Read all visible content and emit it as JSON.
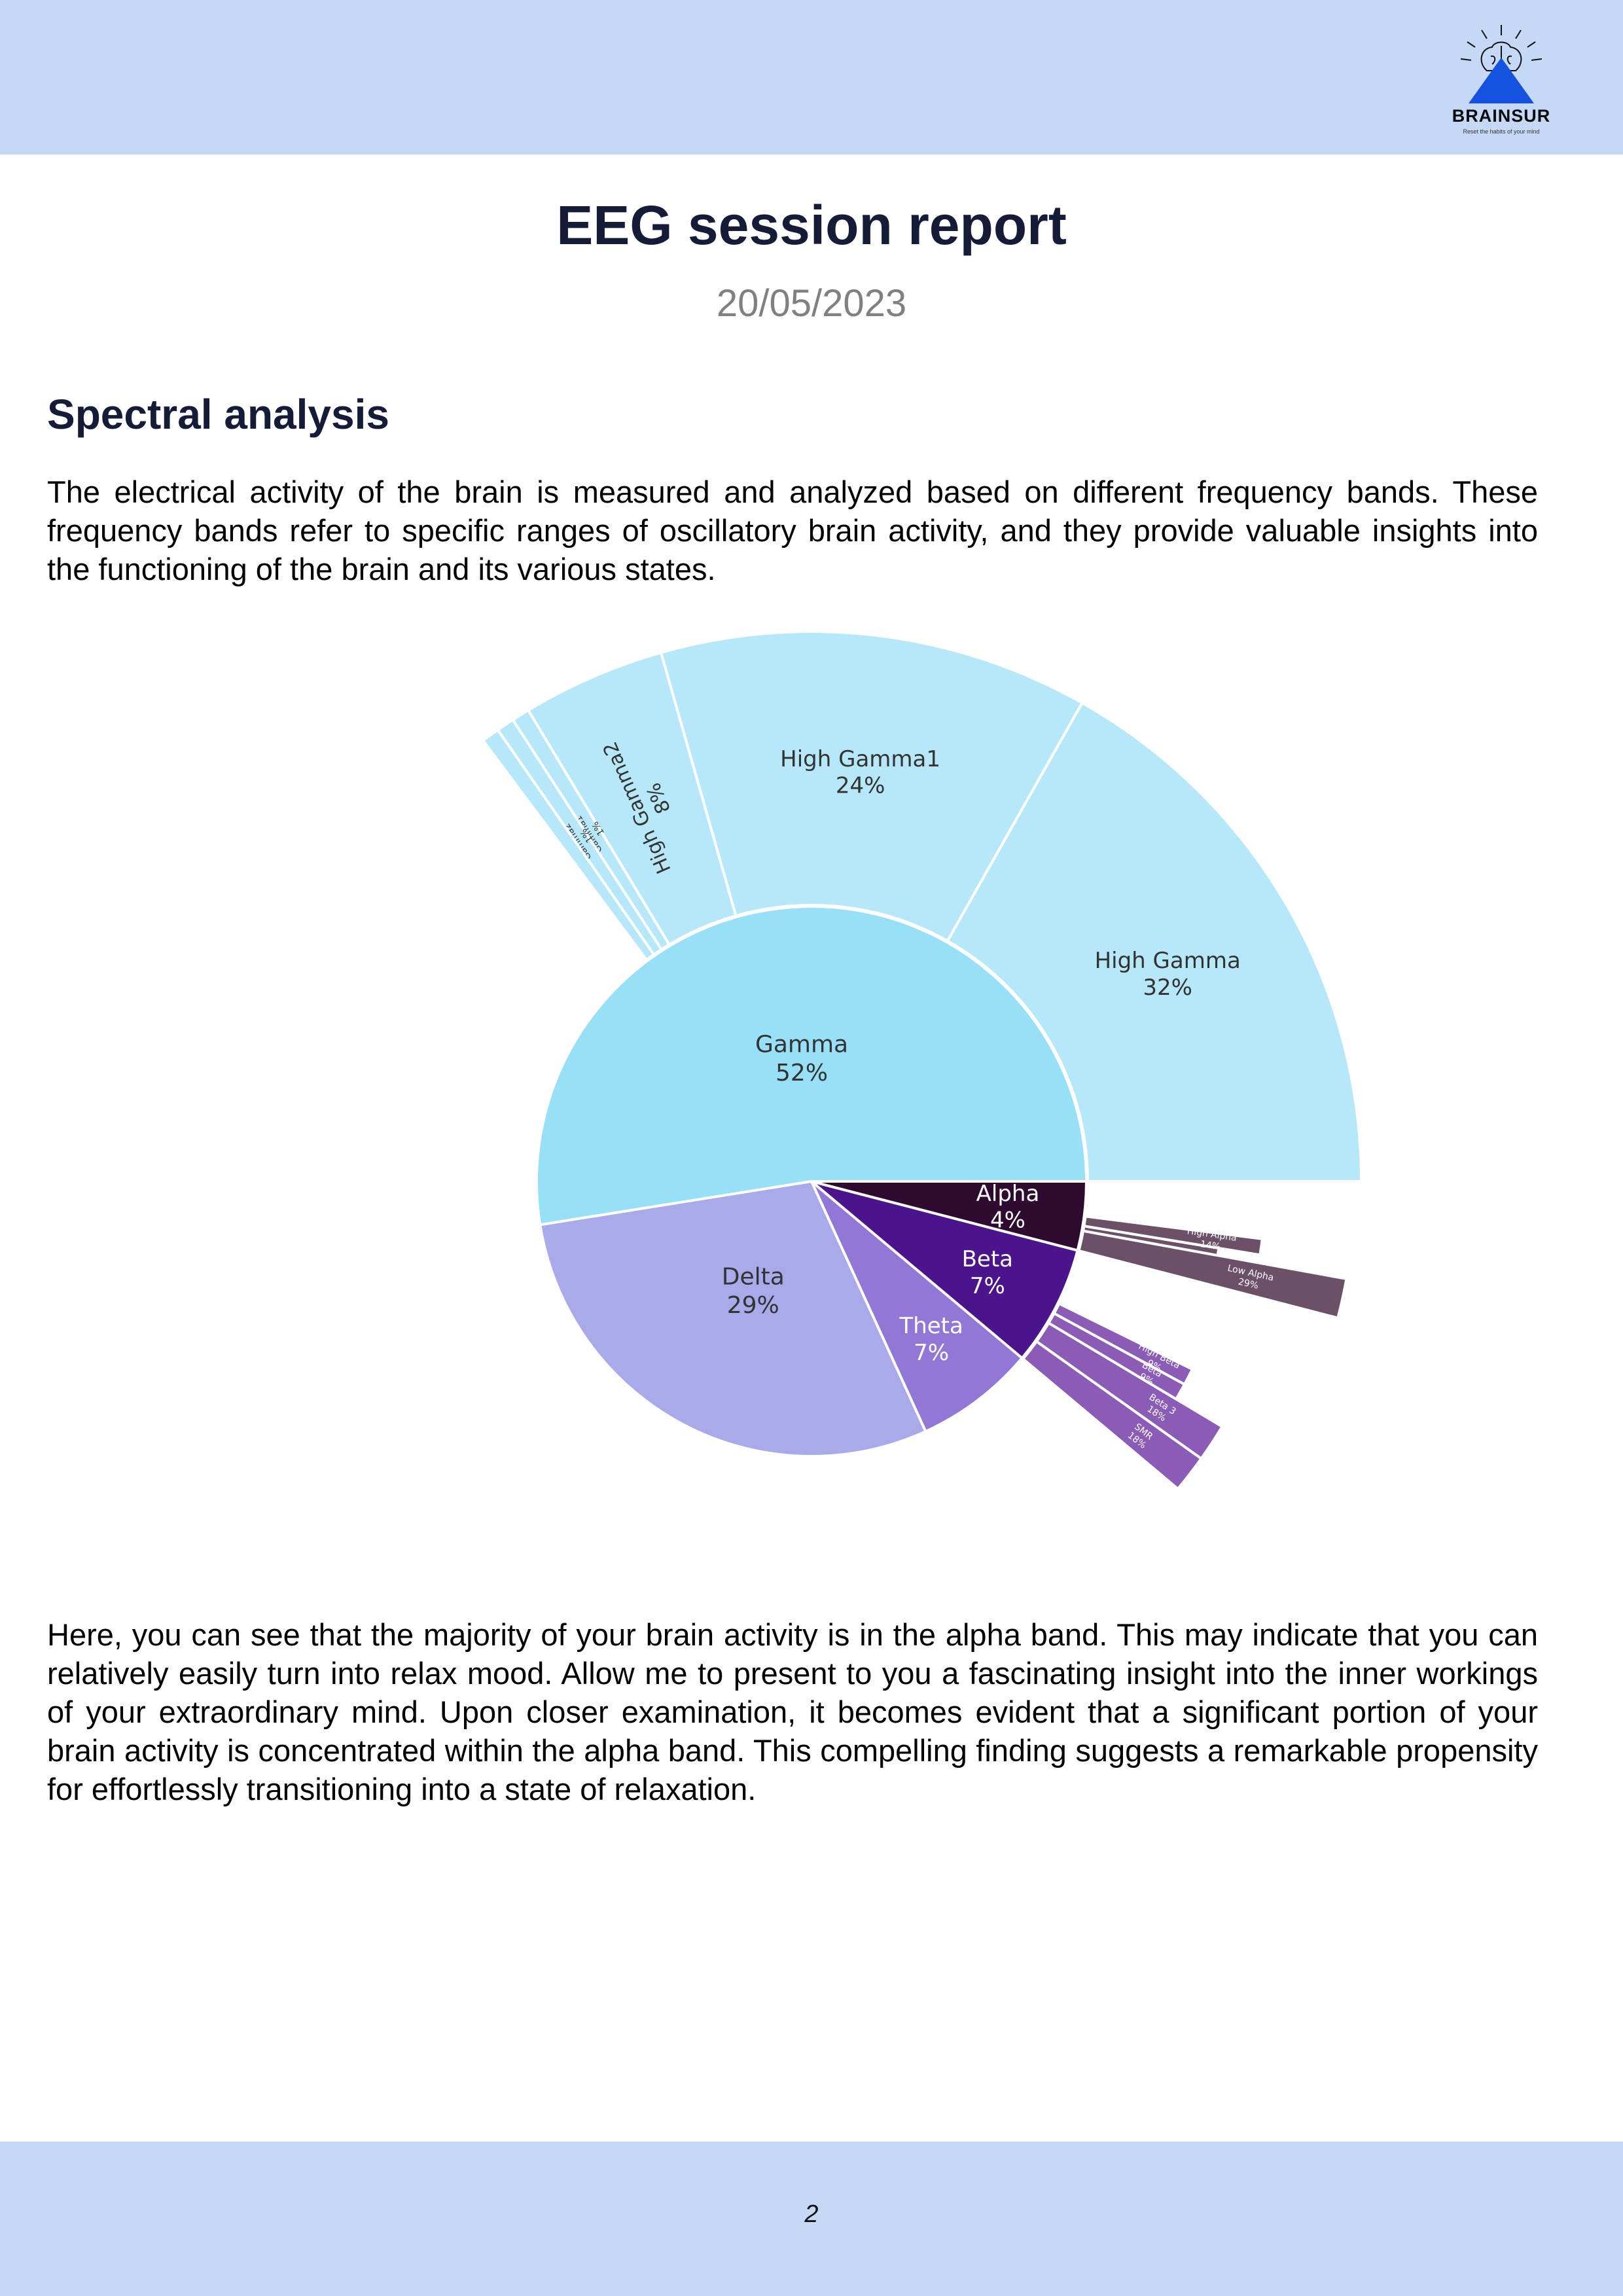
{
  "header": {
    "logo": {
      "name": "BRAINSUR",
      "tagline": "Reset the habits of your mind",
      "icon": "brain-mountain-logo",
      "color": "#1552e0"
    }
  },
  "report": {
    "title": "EEG session report",
    "date": "20/05/2023"
  },
  "section": {
    "title": "Spectral analysis",
    "intro": "The electrical activity of the brain is measured and analyzed based on different frequency bands. These frequency bands refer to specific ranges of oscillatory brain activity, and they provide valuable insights into the functioning of the brain and its various states.",
    "conclusion": "Here, you can see that the majority of your brain activity is in the alpha band. This may indicate that you can relatively easily turn into relax mood. Allow me to present to you a fascinating insight into the inner workings of your extraordinary mind. Upon closer examination, it becomes evident that a significant portion of your brain activity is concentrated within the alpha band. This compelling finding suggests a remarkable propensity for effortlessly transitioning into a state of relaxation."
  },
  "chart_data": {
    "type": "pie",
    "subtype": "sunburst",
    "inner": [
      {
        "label": "Gamma",
        "percent": "52%",
        "value": 52,
        "color": "#98dff8",
        "text_color": "#333333",
        "children": [
          {
            "label": "High Gamma",
            "percent": "32%",
            "value": 32,
            "color": "#b7e8fa",
            "text_color": "#333333"
          },
          {
            "label": "High Gamma1",
            "percent": "24%",
            "value": 24,
            "color": "#b7e8fa",
            "text_color": "#333333"
          },
          {
            "label": "High Gamma2",
            "percent": "8%",
            "value": 8,
            "color": "#b7e8fa",
            "text_color": "#333333"
          },
          {
            "label": "Gamma1",
            "percent": "1%",
            "value": 1,
            "color": "#b7e8fa",
            "text_color": "#333333"
          },
          {
            "label": "Gamma2",
            "percent": "1%",
            "value": 1,
            "color": "#b7e8fa",
            "text_color": "#333333"
          },
          {
            "label": "",
            "percent": "",
            "value": 1,
            "color": "#b7e8fa",
            "text_color": "#333333"
          }
        ]
      },
      {
        "label": "Delta",
        "percent": "29%",
        "value": 29,
        "color": "#a8aaea",
        "text_color": "#333333",
        "children": []
      },
      {
        "label": "Theta",
        "percent": "7%",
        "value": 7,
        "color": "#9278d6",
        "text_color": "#ffffff",
        "children": []
      },
      {
        "label": "Beta",
        "percent": "7%",
        "value": 7,
        "color": "#4c148c",
        "text_color": "#ffffff",
        "children": [
          {
            "label": "SMR",
            "percent": "18%",
            "value": 18,
            "color": "#8a5cb6",
            "text_color": "#ffffff"
          },
          {
            "label": "Beta 3",
            "percent": "18%",
            "value": 18,
            "color": "#8a5cb6",
            "text_color": "#ffffff"
          },
          {
            "label": "Beta",
            "percent": "9%",
            "value": 9,
            "color": "#8a5cb6",
            "text_color": "#ffffff"
          },
          {
            "label": "High Beta",
            "percent": "9%",
            "value": 9,
            "color": "#8a5cb6",
            "text_color": "#ffffff"
          }
        ]
      },
      {
        "label": "Alpha",
        "percent": "4%",
        "value": 4,
        "color": "#2e0a30",
        "text_color": "#ffffff",
        "children": [
          {
            "label": "Low Alpha",
            "percent": "29%",
            "value": 29,
            "color": "#6c5068",
            "text_color": "#ffffff"
          },
          {
            "label": "",
            "percent": "",
            "value": 7,
            "color": "#6c5068",
            "text_color": "#ffffff"
          },
          {
            "label": "High Alpha",
            "percent": "14%",
            "value": 14,
            "color": "#6c5068",
            "text_color": "#ffffff"
          }
        ]
      }
    ]
  },
  "footer": {
    "page_number": "2"
  }
}
